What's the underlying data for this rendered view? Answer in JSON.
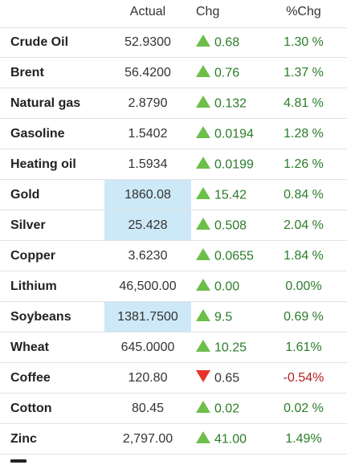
{
  "header": {
    "actual_label": "Actual",
    "chg_label": "Chg",
    "pct_label": "%Chg"
  },
  "rows": [
    {
      "name": "Crude Oil",
      "actual": "52.9300",
      "direction": "up",
      "chg": "0.68",
      "pct": "1.30 %",
      "highlight": false
    },
    {
      "name": "Brent",
      "actual": "56.4200",
      "direction": "up",
      "chg": "0.76",
      "pct": "1.37 %",
      "highlight": false
    },
    {
      "name": "Natural gas",
      "actual": "2.8790",
      "direction": "up",
      "chg": "0.132",
      "pct": "4.81 %",
      "highlight": false
    },
    {
      "name": "Gasoline",
      "actual": "1.5402",
      "direction": "up",
      "chg": "0.0194",
      "pct": "1.28 %",
      "highlight": false
    },
    {
      "name": "Heating oil",
      "actual": "1.5934",
      "direction": "up",
      "chg": "0.0199",
      "pct": "1.26 %",
      "highlight": false
    },
    {
      "name": "Gold",
      "actual": "1860.08",
      "direction": "up",
      "chg": "15.42",
      "pct": "0.84 %",
      "highlight": true
    },
    {
      "name": "Silver",
      "actual": "25.428",
      "direction": "up",
      "chg": "0.508",
      "pct": "2.04 %",
      "highlight": true
    },
    {
      "name": "Copper",
      "actual": "3.6230",
      "direction": "up",
      "chg": "0.0655",
      "pct": "1.84 %",
      "highlight": false
    },
    {
      "name": "Lithium",
      "actual": "46,500.00",
      "direction": "up",
      "chg": "0.00",
      "pct": "0.00%",
      "highlight": false
    },
    {
      "name": "Soybeans",
      "actual": "1381.7500",
      "direction": "up",
      "chg": "9.5",
      "pct": "0.69 %",
      "highlight": true
    },
    {
      "name": "Wheat",
      "actual": "645.0000",
      "direction": "up",
      "chg": "10.25",
      "pct": "1.61%",
      "highlight": false
    },
    {
      "name": "Coffee",
      "actual": "120.80",
      "direction": "down",
      "chg": "0.65",
      "pct": "-0.54%",
      "highlight": false
    },
    {
      "name": "Cotton",
      "actual": "80.45",
      "direction": "up",
      "chg": "0.02",
      "pct": "0.02 %",
      "highlight": false
    },
    {
      "name": "Zinc",
      "actual": "2,797.00",
      "direction": "up",
      "chg": "41.00",
      "pct": "1.49%",
      "highlight": false
    }
  ],
  "colors": {
    "up_arrow": "#6dbf4a",
    "down_arrow": "#e8332b",
    "positive_text": "#2a7d2a",
    "negative_text": "#b22222",
    "highlight_cell": "#cde8f7"
  }
}
